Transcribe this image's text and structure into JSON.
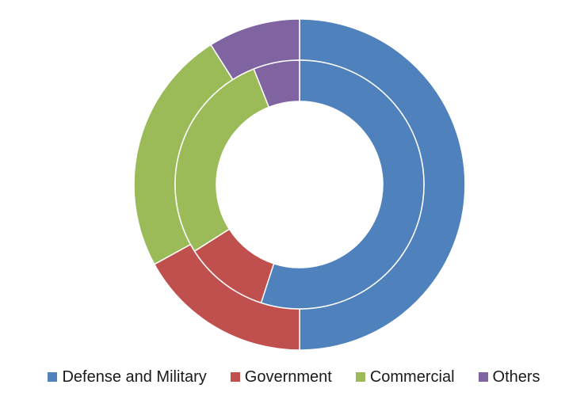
{
  "colors": {
    "defense": "#4f81bd",
    "government": "#c0504d",
    "commercial": "#9bbb59",
    "others": "#8064a2"
  },
  "chart_data": {
    "type": "pie",
    "subtype": "double-donut",
    "categories": [
      "Defense and Military",
      "Government",
      "Commercial",
      "Others"
    ],
    "series": [
      {
        "values": [
          50,
          17,
          24,
          9
        ]
      },
      {
        "values": [
          55,
          11,
          28,
          6
        ]
      }
    ],
    "legend_position": "bottom",
    "title": "",
    "xlabel": "",
    "ylabel": ""
  },
  "legend": {
    "items": [
      {
        "label": "Defense and Military",
        "color": "#4f81bd"
      },
      {
        "label": "Government",
        "color": "#c0504d"
      },
      {
        "label": "Commercial",
        "color": "#9bbb59"
      },
      {
        "label": "Others",
        "color": "#8064a2"
      }
    ]
  }
}
